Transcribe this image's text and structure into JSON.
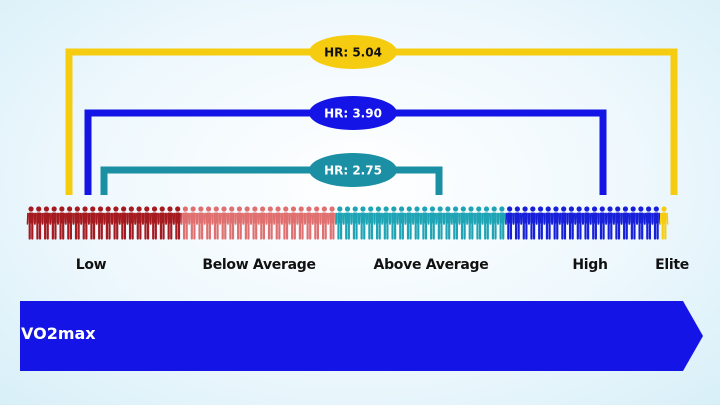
{
  "brackets": [
    {
      "label": "HR: 5.04",
      "color": "#f6cc10",
      "text_color": "#111111"
    },
    {
      "label": "HR: 3.90",
      "color": "#1414e6",
      "text_color": "#ffffff"
    },
    {
      "label": "HR: 2.75",
      "color": "#1b8fa3",
      "text_color": "#ffffff"
    }
  ],
  "categories": [
    {
      "label": "Low",
      "color": "#a51a1f"
    },
    {
      "label": "Below Average",
      "color": "#e07070"
    },
    {
      "label": "Above Average",
      "color": "#1ea4b4"
    },
    {
      "label": "High",
      "color": "#1720d8"
    },
    {
      "label": "Elite",
      "color": "#f6cc10"
    }
  ],
  "arrow": {
    "label": "VO2max",
    "color": "#1414e6"
  }
}
